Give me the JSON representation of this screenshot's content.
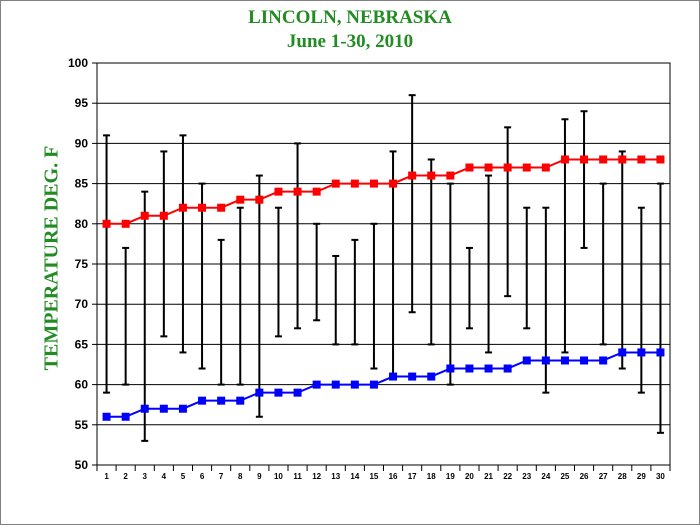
{
  "chart_data": {
    "type": "line",
    "title": "LINCOLN, NEBRASKA",
    "subtitle": "June 1-30, 2010",
    "xlabel": "",
    "ylabel": "TEMPERATURE DEG. F",
    "title_color": "#228B22",
    "ylim": [
      50,
      100
    ],
    "yticks": [
      50,
      55,
      60,
      65,
      70,
      75,
      80,
      85,
      90,
      95,
      100
    ],
    "grid": true,
    "legend": "none",
    "categories": [
      "1",
      "2",
      "3",
      "4",
      "5",
      "6",
      "7",
      "8",
      "9",
      "10",
      "11",
      "12",
      "13",
      "14",
      "15",
      "16",
      "17",
      "18",
      "19",
      "20",
      "21",
      "22",
      "23",
      "24",
      "25",
      "26",
      "27",
      "28",
      "29",
      "30"
    ],
    "series": [
      {
        "color": "#ff0000",
        "marker": "square",
        "values": [
          80,
          80,
          81,
          81,
          82,
          82,
          82,
          83,
          83,
          84,
          84,
          84,
          85,
          85,
          85,
          85,
          86,
          86,
          86,
          87,
          87,
          87,
          87,
          87,
          88,
          88,
          88,
          88,
          88,
          88
        ]
      },
      {
        "color": "#0000ff",
        "marker": "square",
        "values": [
          56,
          56,
          57,
          57,
          57,
          58,
          58,
          58,
          59,
          59,
          59,
          60,
          60,
          60,
          60,
          61,
          61,
          61,
          62,
          62,
          62,
          62,
          63,
          63,
          63,
          63,
          63,
          64,
          64,
          64
        ]
      }
    ],
    "range_bars": {
      "color": "#000000",
      "high": [
        91,
        77,
        84,
        89,
        91,
        85,
        78,
        82,
        86,
        82,
        90,
        80,
        76,
        78,
        80,
        89,
        96,
        88,
        85,
        77,
        86,
        92,
        82,
        82,
        93,
        94,
        85,
        89,
        82,
        85
      ],
      "low": [
        59,
        60,
        53,
        66,
        64,
        62,
        60,
        60,
        56,
        66,
        67,
        68,
        65,
        65,
        62,
        61,
        69,
        65,
        60,
        67,
        64,
        71,
        67,
        59,
        64,
        77,
        65,
        62,
        59,
        54
      ]
    }
  }
}
